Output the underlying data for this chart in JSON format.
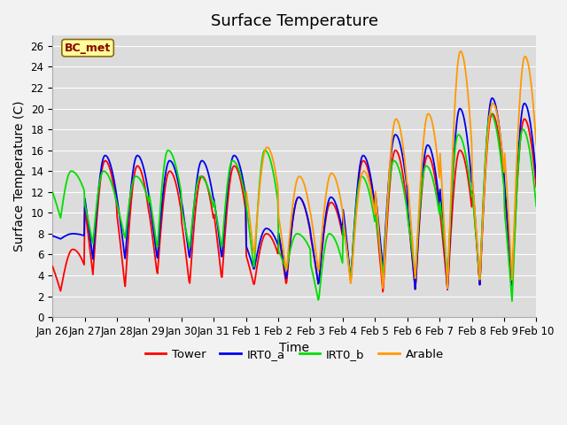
{
  "title": "Surface Temperature",
  "ylabel": "Surface Temperature (C)",
  "xlabel": "Time",
  "annotation": "BC_met",
  "ylim": [
    0,
    27
  ],
  "yticks": [
    0,
    2,
    4,
    6,
    8,
    10,
    12,
    14,
    16,
    18,
    20,
    22,
    24,
    26
  ],
  "xtick_labels": [
    "Jan 26",
    "Jan 27",
    "Jan 28",
    "Jan 29",
    "Jan 30",
    "Jan 31",
    "Feb 1",
    "Feb 2",
    "Feb 3",
    "Feb 4",
    "Feb 5",
    "Feb 6",
    "Feb 7",
    "Feb 8",
    "Feb 9",
    "Feb 10"
  ],
  "colors": {
    "Tower": "#ff0000",
    "IRT0_a": "#0000ee",
    "IRT0_b": "#00dd00",
    "Arable": "#ff9900"
  },
  "fig_bg": "#f2f2f2",
  "ax_bg": "#dcdcdc",
  "grid_color": "#ffffff",
  "title_fontsize": 13,
  "axis_fontsize": 10,
  "tick_fontsize": 8.5,
  "linewidth": 1.3
}
